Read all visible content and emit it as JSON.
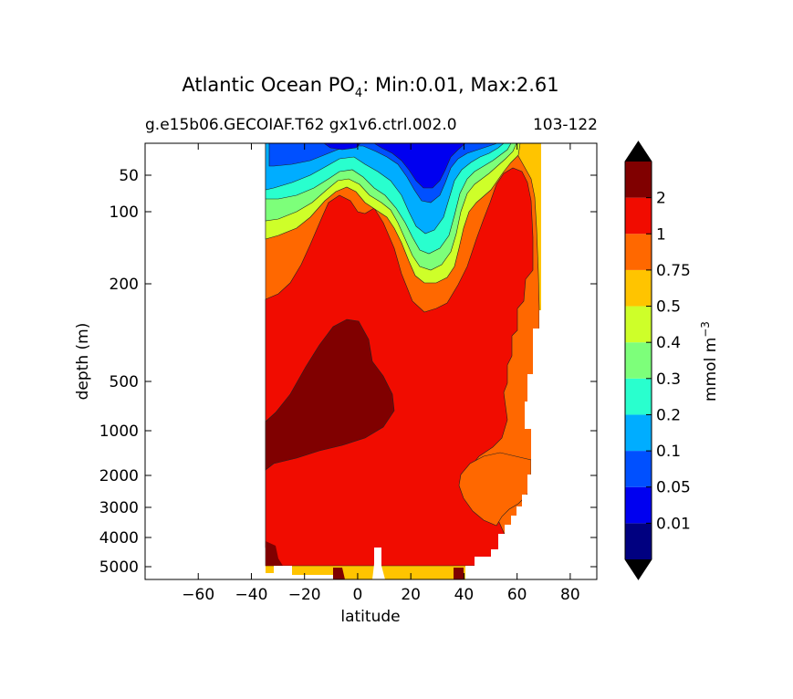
{
  "chart_data": {
    "type": "heatmap",
    "title_prefix": "Atlantic Ocean PO",
    "title_subscript": "4",
    "title_suffix": ": Min:0.01, Max:2.61",
    "subtitle_left": "g.e15b06.GECOIAF.T62 gx1v6.ctrl.002.0",
    "subtitle_right": "103-122",
    "xlabel": "latitude",
    "ylabel": "depth (m)",
    "xlim": [
      -80,
      90
    ],
    "x_ticks": [
      -60,
      -40,
      -20,
      0,
      20,
      40,
      60,
      80
    ],
    "x_tick_labels": [
      "−60",
      "−40",
      "−20",
      "0",
      "20",
      "40",
      "60",
      "80"
    ],
    "y_ticks": [
      50,
      100,
      200,
      500,
      1000,
      2000,
      3000,
      4000,
      5000
    ],
    "y_tick_labels": [
      "50",
      "100",
      "200",
      "500",
      "1000",
      "2000",
      "3000",
      "4000",
      "5000"
    ],
    "colorbar": {
      "label": "mmol m",
      "label_exponent": "−3",
      "levels": [
        0.01,
        0.05,
        0.1,
        0.2,
        0.3,
        0.4,
        0.5,
        0.75,
        1,
        2
      ],
      "level_labels": [
        "0.01",
        "0.05",
        "0.1",
        "0.2",
        "0.3",
        "0.4",
        "0.5",
        "0.75",
        "1",
        "2"
      ],
      "colors": [
        "#000080",
        "#0000f0",
        "#0050ff",
        "#00adff",
        "#29ffce",
        "#7dff7a",
        "#ceff29",
        "#ffc400",
        "#ff6800",
        "#f10c00",
        "#800000"
      ],
      "extend": "both"
    },
    "data_lat_range": [
      -34,
      68
    ]
  }
}
